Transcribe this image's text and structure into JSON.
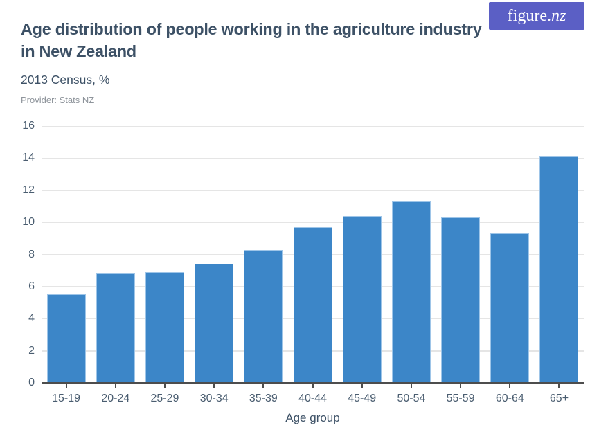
{
  "header": {
    "title_line1": "Age distribution of people working in the agriculture industry",
    "title_line2": "in New Zealand",
    "subtitle": "2013 Census, %",
    "provider": "Provider: Stats NZ",
    "logo": {
      "text_main": "figure.",
      "text_accent": "nz"
    }
  },
  "colors": {
    "bar_fill": "#3c86c8",
    "bar_border": "#9ec5e8",
    "logo_bg": "#5b5fc5",
    "title_text": "#3d5166",
    "axis_text": "#4a5d70",
    "provider_text": "#8e949b",
    "gridline": "#e5e5e5",
    "axis_line": "#4d4d4d"
  },
  "chart_data": {
    "type": "bar",
    "title": "Age distribution of people working in the agriculture industry in New Zealand",
    "subtitle": "2013 Census, %",
    "categories": [
      "15-19",
      "20-24",
      "25-29",
      "30-34",
      "35-39",
      "40-44",
      "45-49",
      "50-54",
      "55-59",
      "60-64",
      "65+"
    ],
    "values": [
      5.5,
      6.8,
      6.9,
      7.4,
      8.3,
      9.7,
      10.4,
      11.3,
      10.3,
      9.3,
      14.1
    ],
    "xlabel": "Age group",
    "ylabel": "",
    "ylim": [
      0,
      16
    ],
    "ytick_step": 2,
    "grid": true,
    "legend": false
  }
}
